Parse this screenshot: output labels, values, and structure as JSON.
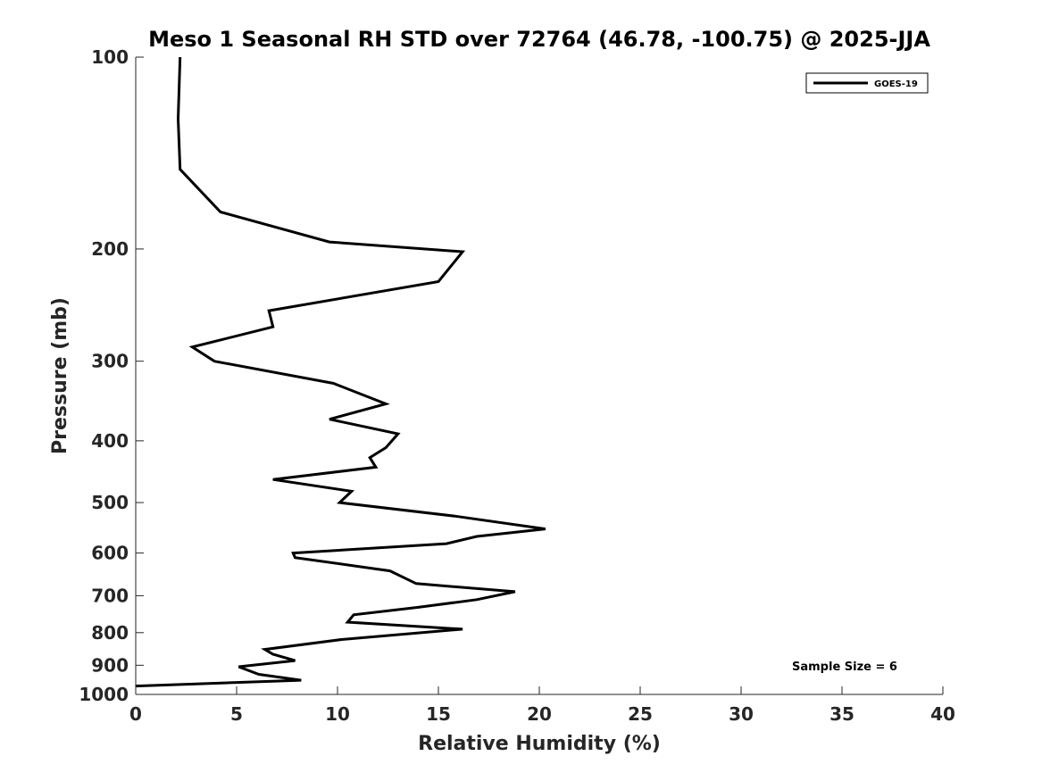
{
  "chart_data": {
    "type": "line",
    "title": "Meso 1 Seasonal RH STD over 72764 (46.78, -100.75) @ 2025-JJA",
    "xlabel": "Relative Humidity (%)",
    "ylabel": "Pressure (mb)",
    "xlim": [
      0,
      40
    ],
    "ylim": [
      1000,
      100
    ],
    "y_scale": "log",
    "y_reversed": true,
    "x_ticks": [
      "0",
      "5",
      "10",
      "15",
      "20",
      "25",
      "30",
      "35",
      "40"
    ],
    "y_ticks": [
      "100",
      "200",
      "300",
      "400",
      "500",
      "600",
      "700",
      "800",
      "900",
      "1000"
    ],
    "grid": false,
    "legend_position": "top-right",
    "annotation": "Sample Size = 6",
    "series": [
      {
        "name": "GOES-19",
        "color": "#000000",
        "x": [
          2.2,
          2.1,
          2.2,
          4.2,
          9.6,
          16.2,
          15.0,
          6.6,
          6.8,
          2.8,
          3.9,
          9.8,
          12.4,
          9.6,
          13.0,
          12.4,
          11.6,
          11.9,
          6.8,
          10.7,
          10.1,
          15.8,
          20.3,
          16.9,
          15.4,
          7.8,
          7.9,
          12.6,
          13.9,
          18.8,
          16.9,
          14.0,
          10.8,
          10.5,
          16.2,
          10.2,
          6.4,
          6.8,
          7.9,
          5.1,
          6.1,
          8.2,
          0.0
        ],
        "y": [
          100,
          125,
          150,
          175,
          195,
          202,
          225,
          250,
          265,
          285,
          300,
          325,
          350,
          370,
          390,
          410,
          425,
          440,
          460,
          480,
          500,
          525,
          550,
          565,
          580,
          600,
          610,
          640,
          670,
          690,
          710,
          730,
          750,
          770,
          790,
          820,
          850,
          865,
          885,
          905,
          930,
          950,
          970
        ]
      }
    ]
  }
}
